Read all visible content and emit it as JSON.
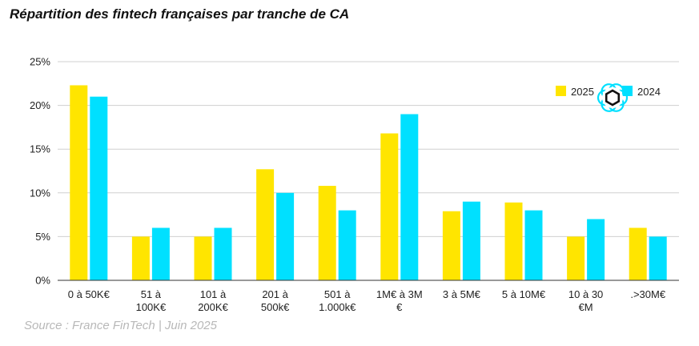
{
  "title": "Répartition des fintech françaises par tranche de CA",
  "source": "Source : France FinTech | Juin 2025",
  "colors": {
    "series_2025": "#FFE500",
    "series_2024": "#00E0FF",
    "grid": "#d0d0d0",
    "axis": "#333333"
  },
  "watermark_icon": "hexagon-flower-logo-icon",
  "chart_data": {
    "type": "bar",
    "title": "Répartition des fintech françaises par tranche de CA",
    "xlabel": "",
    "ylabel": "",
    "ylim": [
      0,
      25
    ],
    "yticks": [
      "0%",
      "5%",
      "10%",
      "15%",
      "20%",
      "25%"
    ],
    "ytick_values": [
      0,
      5,
      10,
      15,
      20,
      25
    ],
    "grid": true,
    "legend_position": "top-right",
    "categories": [
      "0 à 50K€",
      "51 à 100K€",
      "101 à 200K€",
      "201 à 500k€",
      "501 à 1.000k€",
      "1M€ à 3M €",
      "3 à 5M€",
      "5 à 10M€",
      "10 à 30 €M",
      ".>30M€"
    ],
    "category_lines": [
      [
        "0 à 50K€"
      ],
      [
        "51 à",
        "100K€"
      ],
      [
        "101 à",
        "200K€"
      ],
      [
        "201 à",
        "500k€"
      ],
      [
        "501 à",
        "1.000k€"
      ],
      [
        "1M€ à 3M",
        "€"
      ],
      [
        "3 à 5M€"
      ],
      [
        "5 à 10M€"
      ],
      [
        "10 à 30",
        "€M"
      ],
      [
        ".>30M€"
      ]
    ],
    "series": [
      {
        "name": "2025",
        "color": "#FFE500",
        "values": [
          22.3,
          5,
          5,
          12.7,
          10.8,
          16.8,
          7.9,
          8.9,
          5,
          6
        ]
      },
      {
        "name": "2024",
        "color": "#00E0FF",
        "values": [
          21,
          6,
          6,
          10,
          8,
          19,
          9,
          8,
          7,
          5
        ]
      }
    ]
  }
}
